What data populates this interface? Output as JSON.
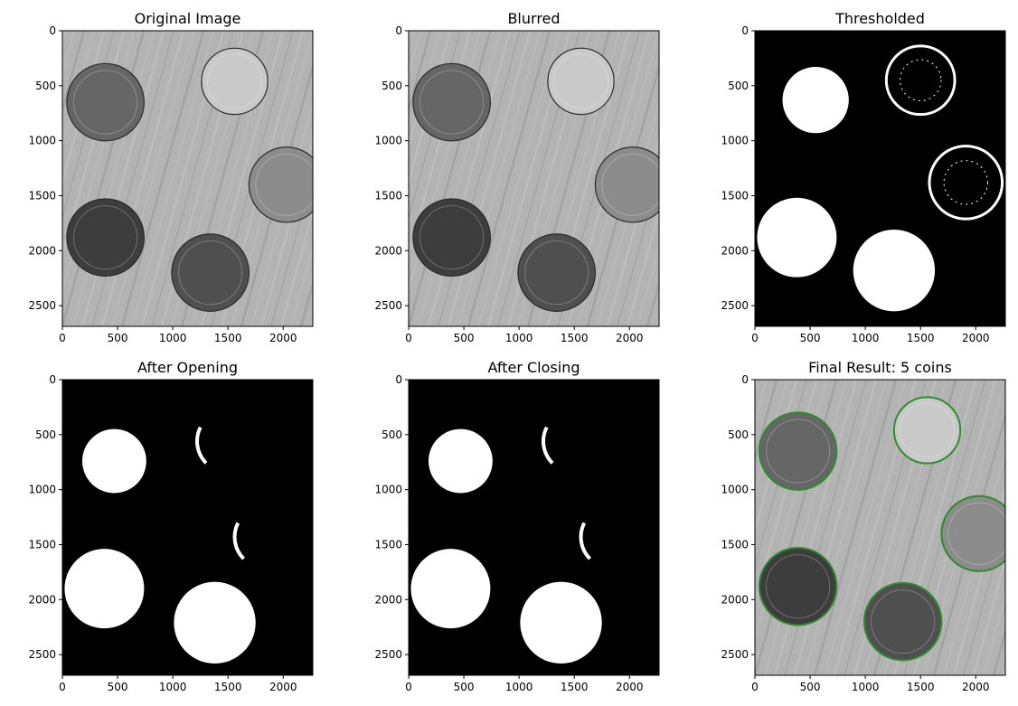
{
  "chart_data": [
    {
      "type": "image",
      "title": "Original Image",
      "background": "#b3b3b3",
      "xticks": [
        0,
        500,
        1000,
        1500,
        2000
      ],
      "yticks": [
        0,
        500,
        1000,
        1500,
        2000,
        2500
      ],
      "xlim": [
        0,
        2268
      ],
      "ylim": [
        2688,
        0
      ],
      "coins": [
        {
          "cx": 390,
          "cy": 650,
          "r": 350,
          "fill": "#666666"
        },
        {
          "cx": 1560,
          "cy": 460,
          "r": 300,
          "fill": "#c9c9c9"
        },
        {
          "cx": 2030,
          "cy": 1400,
          "r": 340,
          "fill": "#8c8c8c"
        },
        {
          "cx": 390,
          "cy": 1880,
          "r": 350,
          "fill": "#3d3d3d"
        },
        {
          "cx": 1340,
          "cy": 2200,
          "r": 350,
          "fill": "#4f4f4f"
        }
      ]
    },
    {
      "type": "image",
      "title": "Blurred",
      "background": "#b3b3b3",
      "xticks": [
        0,
        500,
        1000,
        1500,
        2000
      ],
      "yticks": [
        0,
        500,
        1000,
        1500,
        2000,
        2500
      ],
      "xlim": [
        0,
        2268
      ],
      "ylim": [
        2688,
        0
      ],
      "coins": [
        {
          "cx": 390,
          "cy": 650,
          "r": 350,
          "fill": "#666666"
        },
        {
          "cx": 1560,
          "cy": 460,
          "r": 300,
          "fill": "#c9c9c9"
        },
        {
          "cx": 2030,
          "cy": 1400,
          "r": 340,
          "fill": "#8c8c8c"
        },
        {
          "cx": 390,
          "cy": 1880,
          "r": 350,
          "fill": "#3d3d3d"
        },
        {
          "cx": 1340,
          "cy": 2200,
          "r": 350,
          "fill": "#4f4f4f"
        }
      ]
    },
    {
      "type": "image",
      "title": "Thresholded",
      "background": "#000000",
      "xticks": [
        0,
        500,
        1000,
        1500,
        2000
      ],
      "yticks": [
        0,
        500,
        1000,
        1500,
        2000,
        2500
      ],
      "xlim": [
        0,
        2268
      ],
      "ylim": [
        2688,
        0
      ],
      "blobs": [
        {
          "cx": 550,
          "cy": 630,
          "r": 300,
          "fill": "#ffffff"
        },
        {
          "cx": 1500,
          "cy": 450,
          "r": 310,
          "fill": "#ffffff",
          "ring": true
        },
        {
          "cx": 1910,
          "cy": 1380,
          "r": 330,
          "fill": "#ffffff",
          "ring": true
        },
        {
          "cx": 380,
          "cy": 1880,
          "r": 360,
          "fill": "#ffffff"
        },
        {
          "cx": 1260,
          "cy": 2180,
          "r": 370,
          "fill": "#ffffff"
        }
      ]
    },
    {
      "type": "image",
      "title": "After Opening",
      "background": "#000000",
      "xticks": [
        0,
        500,
        1000,
        1500,
        2000
      ],
      "yticks": [
        0,
        500,
        1000,
        1500,
        2000,
        2500
      ],
      "xlim": [
        0,
        2268
      ],
      "ylim": [
        2688,
        0
      ],
      "blobs": [
        {
          "cx": 470,
          "cy": 740,
          "r": 290,
          "fill": "#ffffff"
        },
        {
          "cx": 380,
          "cy": 1900,
          "r": 360,
          "fill": "#ffffff"
        },
        {
          "cx": 1380,
          "cy": 2210,
          "r": 370,
          "fill": "#ffffff"
        }
      ],
      "arcs": [
        {
          "cx": 1500,
          "cy": 560,
          "r": 280
        },
        {
          "cx": 1840,
          "cy": 1430,
          "r": 280
        }
      ]
    },
    {
      "type": "image",
      "title": "After Closing",
      "background": "#000000",
      "xticks": [
        0,
        500,
        1000,
        1500,
        2000
      ],
      "yticks": [
        0,
        500,
        1000,
        1500,
        2000,
        2500
      ],
      "xlim": [
        0,
        2268
      ],
      "ylim": [
        2688,
        0
      ],
      "blobs": [
        {
          "cx": 470,
          "cy": 740,
          "r": 290,
          "fill": "#ffffff"
        },
        {
          "cx": 380,
          "cy": 1900,
          "r": 360,
          "fill": "#ffffff"
        },
        {
          "cx": 1380,
          "cy": 2210,
          "r": 370,
          "fill": "#ffffff"
        }
      ],
      "arcs": [
        {
          "cx": 1500,
          "cy": 560,
          "r": 280
        },
        {
          "cx": 1840,
          "cy": 1430,
          "r": 280
        }
      ]
    },
    {
      "type": "image",
      "title": "Final Result: 5 coins",
      "background": "#b3b3b3",
      "xticks": [
        0,
        500,
        1000,
        1500,
        2000
      ],
      "yticks": [
        0,
        500,
        1000,
        1500,
        2000,
        2500
      ],
      "xlim": [
        0,
        2268
      ],
      "ylim": [
        2688,
        0
      ],
      "coins": [
        {
          "cx": 390,
          "cy": 650,
          "r": 350,
          "fill": "#666666",
          "outline": "#2e8b2e"
        },
        {
          "cx": 1560,
          "cy": 460,
          "r": 300,
          "fill": "#c9c9c9",
          "outline": "#2e8b2e"
        },
        {
          "cx": 2030,
          "cy": 1400,
          "r": 340,
          "fill": "#8c8c8c",
          "outline": "#2e8b2e"
        },
        {
          "cx": 390,
          "cy": 1880,
          "r": 350,
          "fill": "#3d3d3d",
          "outline": "#2e8b2e"
        },
        {
          "cx": 1340,
          "cy": 2200,
          "r": 350,
          "fill": "#4f4f4f",
          "outline": "#2e8b2e"
        }
      ]
    }
  ]
}
